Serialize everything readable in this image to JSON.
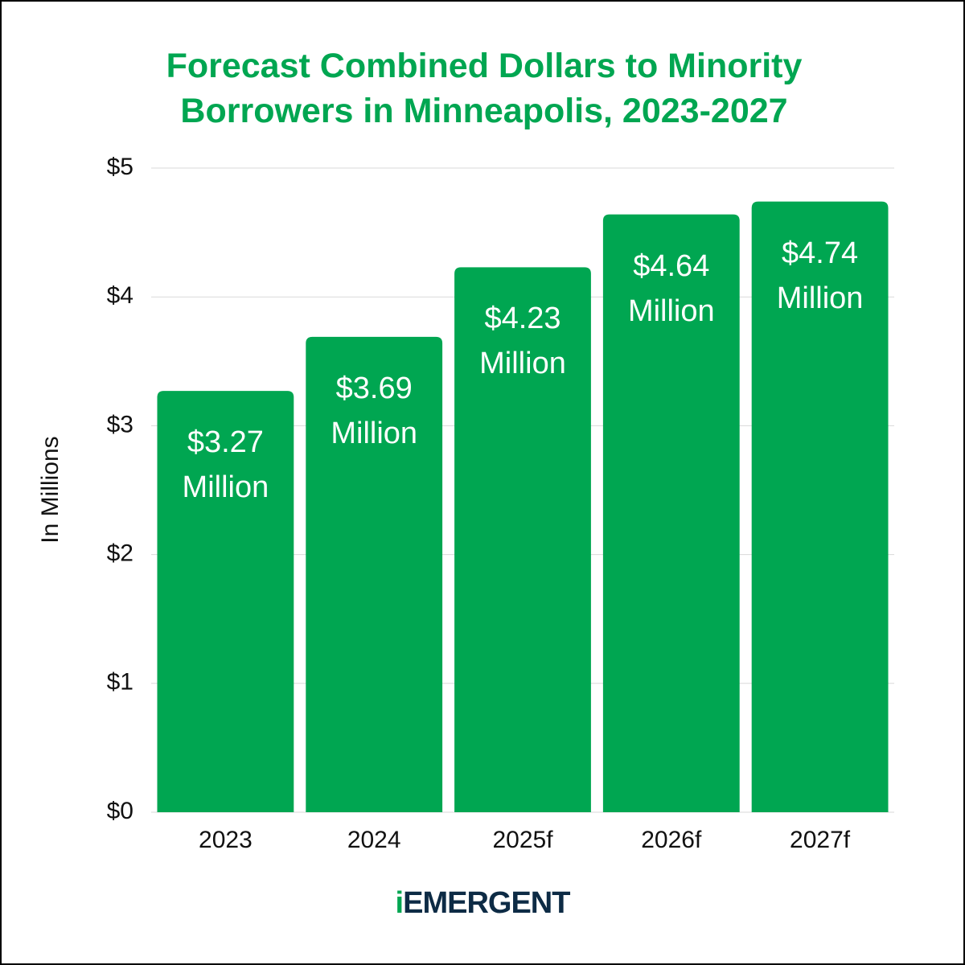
{
  "chart_data": {
    "type": "bar",
    "title": "Forecast Combined Dollars to Minority Borrowers in Minneapolis, 2023-2027",
    "y_label": "In Millions",
    "categories": [
      "2023",
      "2024",
      "2025f",
      "2026f",
      "2027f"
    ],
    "values": [
      3.27,
      3.69,
      4.23,
      4.64,
      4.74
    ],
    "value_labels": [
      "$3.27 Million",
      "$3.69 Million",
      "$4.23 Million",
      "$4.64 Million",
      "$4.74 Million"
    ],
    "color": "#00a651",
    "ylim": [
      0,
      5
    ],
    "yticks": [
      {
        "value": 0,
        "label": "$0"
      },
      {
        "value": 1,
        "label": "$1"
      },
      {
        "value": 2,
        "label": "$2"
      },
      {
        "value": 3,
        "label": "$3"
      },
      {
        "value": 4,
        "label": "$4"
      },
      {
        "value": 5,
        "label": "$5"
      }
    ],
    "grid": true
  },
  "logo": {
    "mark": "i",
    "name": "EMERGENT"
  }
}
